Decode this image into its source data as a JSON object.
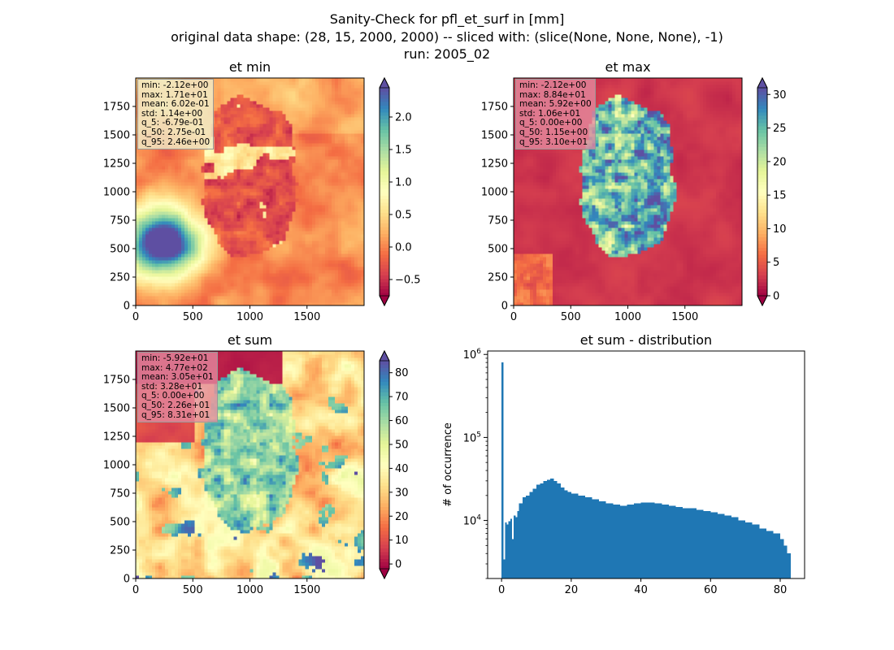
{
  "figure": {
    "title_lines": [
      "Sanity-Check for pfl_et_surf in [mm]",
      "original data shape: (28, 15, 2000, 2000) -- sliced with: (slice(None, None, None), -1)",
      "run: 2005_02"
    ]
  },
  "colormap_name": "Spectral",
  "chart_data": [
    {
      "type": "heatmap",
      "title": "et min",
      "xlim": [
        0,
        2000
      ],
      "ylim": [
        0,
        2000
      ],
      "xticks": [
        0,
        500,
        1000,
        1500
      ],
      "yticks": [
        0,
        250,
        500,
        750,
        1000,
        1250,
        1500,
        1750
      ],
      "colorbar": {
        "range": [
          -0.75,
          2.45
        ],
        "ticks": [
          -0.5,
          0.0,
          0.5,
          1.0,
          1.5,
          2.0
        ],
        "tick_labels": [
          "−0.5",
          "0.0",
          "0.5",
          "1.0",
          "1.5",
          "2.0"
        ],
        "extend": "both"
      },
      "stats": [
        "min: -2.12e+00",
        "max: 1.71e+01",
        "mean: 6.02e-01",
        "std: 1.14e+00",
        "q_5: -6.79e-01",
        "q_50: 2.75e-01",
        "q_95: 2.46e+00"
      ]
    },
    {
      "type": "heatmap",
      "title": "et max",
      "xlim": [
        0,
        2000
      ],
      "ylim": [
        0,
        2000
      ],
      "xticks": [
        0,
        500,
        1000,
        1500
      ],
      "yticks": [
        0,
        250,
        500,
        750,
        1000,
        1250,
        1500,
        1750
      ],
      "colorbar": {
        "range": [
          0,
          31
        ],
        "ticks": [
          0,
          5,
          10,
          15,
          20,
          25,
          30
        ],
        "tick_labels": [
          "0",
          "5",
          "10",
          "15",
          "20",
          "25",
          "30"
        ],
        "extend": "both"
      },
      "stats": [
        "min: -2.12e+00",
        "max: 8.84e+01",
        "mean: 5.92e+00",
        "std: 1.06e+01",
        "q_5: 0.00e+00",
        "q_50: 1.15e+00",
        "q_95: 3.10e+01"
      ]
    },
    {
      "type": "heatmap",
      "title": "et sum",
      "xlim": [
        0,
        2000
      ],
      "ylim": [
        0,
        2000
      ],
      "xticks": [
        0,
        500,
        1000,
        1500
      ],
      "yticks": [
        0,
        250,
        500,
        750,
        1000,
        1250,
        1500,
        1750
      ],
      "colorbar": {
        "range": [
          -2,
          85
        ],
        "ticks": [
          0,
          10,
          20,
          30,
          40,
          50,
          60,
          70,
          80
        ],
        "tick_labels": [
          "0",
          "10",
          "20",
          "30",
          "40",
          "50",
          "60",
          "70",
          "80"
        ],
        "extend": "both"
      },
      "stats": [
        "min: -5.92e+01",
        "max: 4.77e+02",
        "mean: 3.05e+01",
        "std: 3.28e+01",
        "q_5: 0.00e+00",
        "q_50: 2.26e+01",
        "q_95: 8.31e+01"
      ]
    },
    {
      "type": "bar",
      "title": "et sum - distribution",
      "ylabel": "# of occurrence",
      "yscale": "log",
      "xlim": [
        -4,
        87
      ],
      "ylim": [
        2000,
        1100000
      ],
      "xticks": [
        0,
        20,
        40,
        60,
        80
      ],
      "yticks": [
        10000,
        100000,
        1000000
      ],
      "ytick_labels": [
        "10^4",
        "10^5",
        "10^6"
      ],
      "color": "#1f77b4",
      "bins": [
        [
          0,
          0.5,
          800000
        ],
        [
          0.5,
          1.0,
          3400
        ],
        [
          1.0,
          1.5,
          9500
        ],
        [
          1.5,
          2.0,
          9000
        ],
        [
          2.0,
          2.5,
          9800
        ],
        [
          2.5,
          3.0,
          10500
        ],
        [
          3.0,
          3.5,
          6000
        ],
        [
          3.5,
          4.0,
          11500
        ],
        [
          4.0,
          4.5,
          11000
        ],
        [
          4.5,
          5.0,
          13000
        ],
        [
          5.0,
          6.0,
          16000
        ],
        [
          6.0,
          7.0,
          19000
        ],
        [
          7.0,
          8.0,
          20000
        ],
        [
          8.0,
          9.0,
          22000
        ],
        [
          9.0,
          10.0,
          24000
        ],
        [
          10.0,
          11.0,
          27000
        ],
        [
          11.0,
          12.0,
          28000
        ],
        [
          12.0,
          13.0,
          30000
        ],
        [
          13.0,
          14.0,
          31000
        ],
        [
          14.0,
          15.0,
          32000
        ],
        [
          15.0,
          16.0,
          30000
        ],
        [
          16.0,
          17.0,
          28000
        ],
        [
          17.0,
          18.0,
          25000
        ],
        [
          18.0,
          19.0,
          23000
        ],
        [
          19.0,
          20.0,
          22000
        ],
        [
          20.0,
          22.0,
          21000
        ],
        [
          22.0,
          24.0,
          20000
        ],
        [
          24.0,
          26.0,
          19000
        ],
        [
          26.0,
          28.0,
          18000
        ],
        [
          28.0,
          30.0,
          17000
        ],
        [
          30.0,
          32.0,
          16000
        ],
        [
          32.0,
          34.0,
          15500
        ],
        [
          34.0,
          36.0,
          15000
        ],
        [
          36.0,
          38.0,
          15500
        ],
        [
          38.0,
          40.0,
          16000
        ],
        [
          40.0,
          42.0,
          16500
        ],
        [
          42.0,
          44.0,
          16500
        ],
        [
          44.0,
          46.0,
          16000
        ],
        [
          46.0,
          48.0,
          15500
        ],
        [
          48.0,
          50.0,
          15000
        ],
        [
          50.0,
          52.0,
          14500
        ],
        [
          52.0,
          54.0,
          14000
        ],
        [
          54.0,
          56.0,
          14000
        ],
        [
          56.0,
          58.0,
          13500
        ],
        [
          58.0,
          60.0,
          13000
        ],
        [
          60.0,
          62.0,
          12500
        ],
        [
          62.0,
          64.0,
          12000
        ],
        [
          64.0,
          66.0,
          11500
        ],
        [
          66.0,
          68.0,
          11000
        ],
        [
          68.0,
          70.0,
          10000
        ],
        [
          70.0,
          72.0,
          9500
        ],
        [
          72.0,
          74.0,
          9000
        ],
        [
          74.0,
          76.0,
          8000
        ],
        [
          76.0,
          78.0,
          7500
        ],
        [
          78.0,
          80.0,
          7000
        ],
        [
          80.0,
          81.0,
          6000
        ],
        [
          81.0,
          82.0,
          5000
        ],
        [
          82.0,
          83.0,
          4000
        ]
      ]
    }
  ]
}
